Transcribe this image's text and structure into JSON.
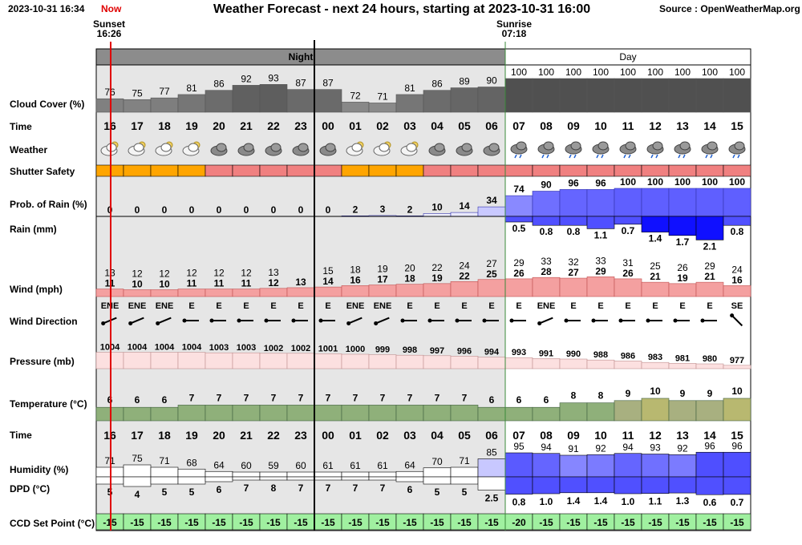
{
  "header": {
    "datetime": "2023-10-31 16:34",
    "now_label": "Now",
    "title": "Weather Forecast - next 24 hours, starting at 2023-10-31 16:00",
    "source": "Source : OpenWeatherMap.org"
  },
  "sunset": {
    "label": "Sunset",
    "time": "16:26"
  },
  "sunrise": {
    "label": "Sunrise",
    "time": "07:18"
  },
  "periods": {
    "night": "Night",
    "day": "Day"
  },
  "row_labels": {
    "cloud": "Cloud Cover (%)",
    "time": "Time",
    "weather": "Weather",
    "shutter": "Shutter Safety",
    "prob": "Prob. of Rain (%)",
    "rain": "Rain (mm)",
    "wind": "Wind (mph)",
    "wind_dir": "Wind Direction",
    "pressure": "Pressure (mb)",
    "temperature": "Temperature (°C)",
    "time2": "Time",
    "humidity": "Humidity (%)",
    "dpd": "DPD (°C)",
    "ccd": "CCD Set Point (°C)"
  },
  "colors": {
    "night_header": "#8c8c8c",
    "day_header": "#ffffff",
    "night_bg": "#e6e6e6",
    "now_line": "#e00000",
    "midnight_line": "#000000",
    "shutter_orange": "#ffa500",
    "shutter_red": "#f08080",
    "ccd_green": "#a0f0a0",
    "rain_blue": "#5050ff",
    "temperature_green": "#8fb07a",
    "temperature_olive": "#b8b870"
  },
  "chart_data": {
    "type": "table",
    "hours": [
      "16",
      "17",
      "18",
      "19",
      "20",
      "21",
      "22",
      "23",
      "00",
      "01",
      "02",
      "03",
      "04",
      "05",
      "06",
      "07",
      "08",
      "09",
      "10",
      "11",
      "12",
      "13",
      "14",
      "15"
    ],
    "night_hours": 15,
    "cloud_cover": [
      76,
      75,
      77,
      81,
      86,
      92,
      93,
      87,
      87,
      72,
      71,
      81,
      86,
      89,
      90,
      100,
      100,
      100,
      100,
      100,
      100,
      100,
      100,
      100
    ],
    "weather_icons": [
      "partly-cloudy-moon-icon",
      "partly-cloudy-moon-icon",
      "partly-cloudy-moon-icon",
      "partly-cloudy-moon-icon",
      "cloud-icon",
      "cloud-icon",
      "cloud-icon",
      "cloud-icon",
      "cloud-icon",
      "partly-cloudy-moon-icon",
      "partly-cloudy-moon-icon",
      "partly-cloudy-moon-icon",
      "cloud-icon",
      "cloud-icon",
      "cloud-icon",
      "rain-cloud-icon",
      "rain-cloud-icon",
      "rain-cloud-icon",
      "rain-cloud-icon",
      "rain-cloud-icon",
      "rain-cloud-icon",
      "rain-cloud-icon",
      "rain-cloud-icon",
      "rain-cloud-icon"
    ],
    "shutter_safety": [
      "orange",
      "orange",
      "orange",
      "orange",
      "red",
      "red",
      "red",
      "red",
      "red",
      "orange",
      "orange",
      "orange",
      "red",
      "red",
      "red",
      "red",
      "red",
      "red",
      "red",
      "red",
      "red",
      "red",
      "red",
      "red"
    ],
    "prob_rain": [
      0,
      0,
      0,
      0,
      0,
      0,
      0,
      0,
      0,
      2,
      3,
      2,
      10,
      14,
      34,
      74,
      90,
      96,
      96,
      100,
      100,
      100,
      100,
      100
    ],
    "rain_mm": [
      null,
      null,
      null,
      null,
      null,
      null,
      null,
      null,
      null,
      null,
      null,
      null,
      null,
      null,
      null,
      0.5,
      0.8,
      0.8,
      1.1,
      0.7,
      1.4,
      1.7,
      2.1,
      0.8
    ],
    "wind_gust": [
      13,
      12,
      12,
      12,
      12,
      12,
      13,
      null,
      15,
      18,
      19,
      20,
      22,
      24,
      27,
      29,
      33,
      32,
      33,
      31,
      25,
      26,
      29,
      24
    ],
    "wind_speed": [
      11,
      10,
      10,
      11,
      11,
      11,
      12,
      13,
      14,
      16,
      17,
      18,
      19,
      22,
      25,
      26,
      28,
      27,
      29,
      26,
      21,
      19,
      21,
      16
    ],
    "wind_direction": [
      "ENE",
      "ENE",
      "ENE",
      "E",
      "E",
      "E",
      "E",
      "E",
      "E",
      "ENE",
      "ENE",
      "E",
      "E",
      "E",
      "E",
      "E",
      "ENE",
      "E",
      "E",
      "E",
      "E",
      "E",
      "E",
      "SE"
    ],
    "pressure": [
      1004,
      1004,
      1004,
      1004,
      1003,
      1003,
      1002,
      1002,
      1001,
      1000,
      999,
      998,
      997,
      996,
      994,
      993,
      991,
      990,
      988,
      986,
      983,
      981,
      980,
      977
    ],
    "temperature": [
      6,
      6,
      6,
      7,
      7,
      7,
      7,
      7,
      7,
      7,
      7,
      7,
      7,
      7,
      6,
      6,
      6,
      8,
      8,
      9,
      10,
      9,
      9,
      10
    ],
    "humidity": [
      71,
      75,
      71,
      68,
      64,
      60,
      59,
      60,
      61,
      61,
      61,
      64,
      70,
      71,
      85,
      95,
      94,
      91,
      92,
      94,
      93,
      92,
      96,
      96
    ],
    "dpd": [
      5,
      4,
      5,
      5,
      6,
      7,
      8,
      7,
      7,
      7,
      7,
      6,
      5,
      5,
      2.5,
      0.8,
      1.0,
      1.4,
      1.4,
      1.0,
      1.1,
      1.3,
      0.6,
      0.7
    ],
    "dpd_labels": [
      "5",
      "4",
      "5",
      "5",
      "6",
      "7",
      "8",
      "7",
      "7",
      "7",
      "7",
      "6",
      "5",
      "5",
      "2.5",
      "0.8",
      "1.0",
      "1.4",
      "1.4",
      "1.0",
      "1.1",
      "1.3",
      "0.6",
      "0.7"
    ],
    "ccd_set_point": [
      -15,
      -15,
      -15,
      -15,
      -15,
      -15,
      -15,
      -15,
      -15,
      -15,
      -15,
      -15,
      -15,
      -15,
      -15,
      -20,
      -15,
      -15,
      -15,
      -15,
      -15,
      -15,
      -15,
      -15
    ]
  }
}
